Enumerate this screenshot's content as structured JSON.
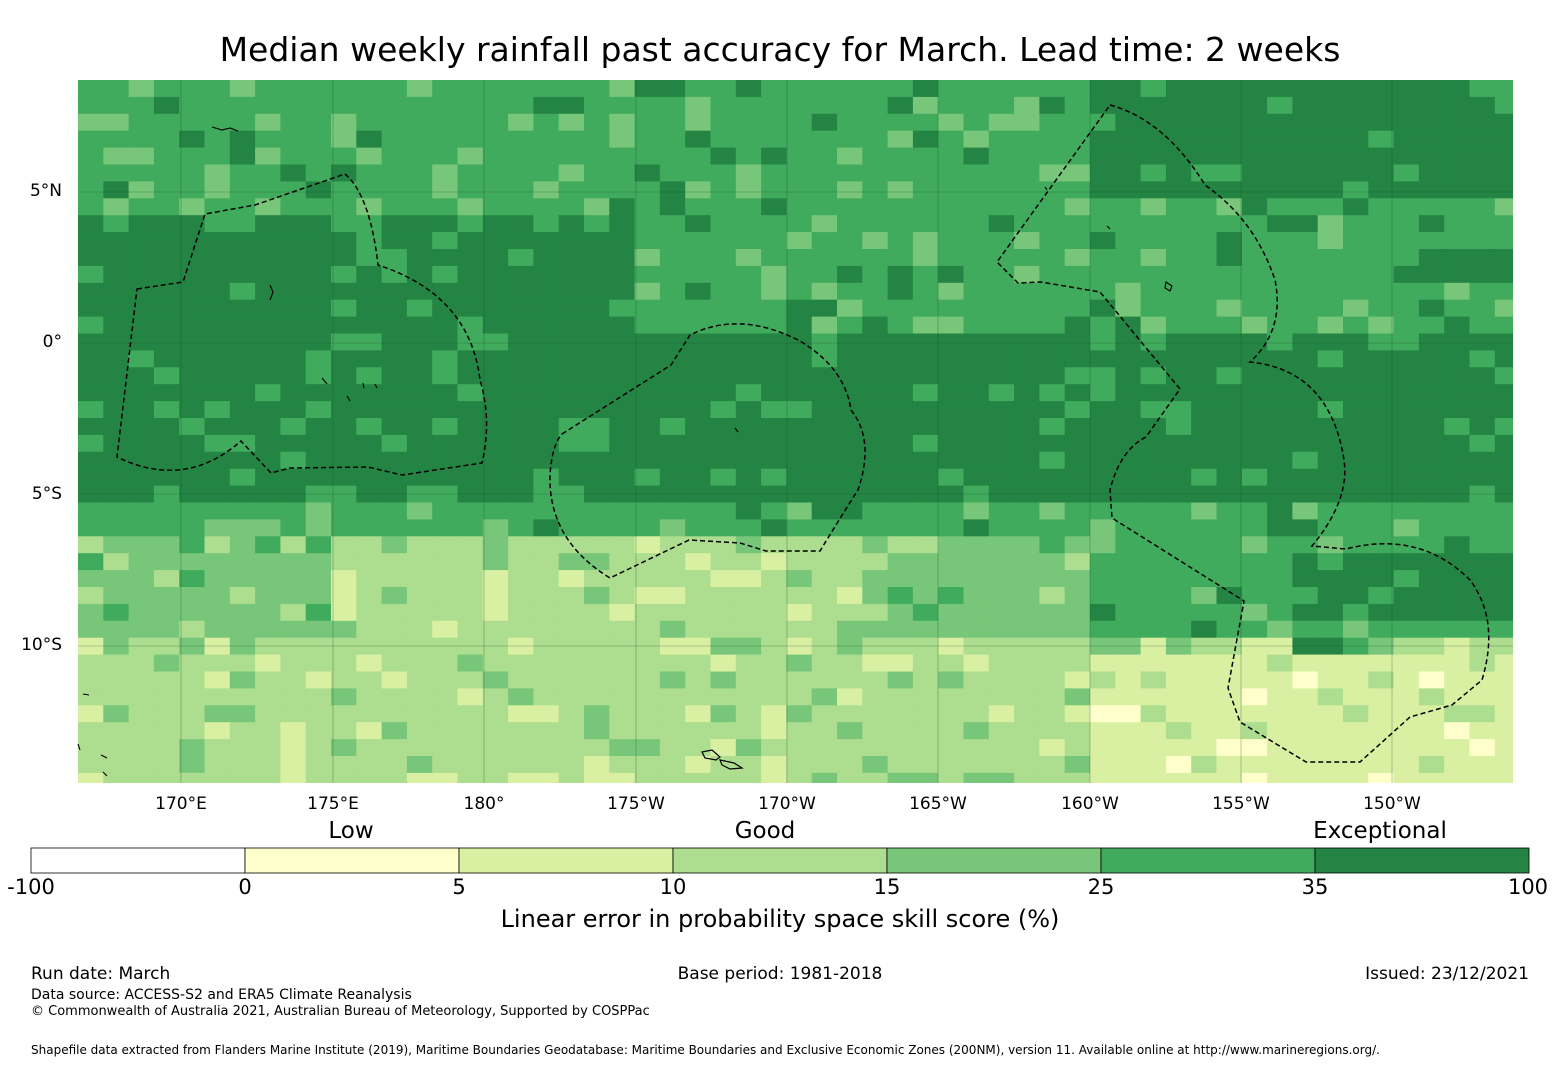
{
  "title": "Median weekly rainfall past accuracy for March. Lead time: 2 weeks",
  "map": {
    "lon_labels": [
      "170°E",
      "175°E",
      "180°",
      "175°W",
      "170°W",
      "165°W",
      "160°W",
      "155°W",
      "150°W"
    ],
    "lat_labels": [
      "5°N",
      "0°",
      "5°S",
      "10°S"
    ]
  },
  "colorbar": {
    "categories": [
      "Low",
      "Good",
      "Exceptional"
    ],
    "ticks": [
      "-100",
      "0",
      "5",
      "10",
      "15",
      "25",
      "35",
      "100"
    ],
    "colors": [
      "#ffffff",
      "#ffffcc",
      "#d9f0a3",
      "#addd8e",
      "#78c679",
      "#41ab5d",
      "#238443"
    ],
    "label": "Linear error in probability space skill score (%)"
  },
  "footer": {
    "run_date": "Run date: March",
    "base_period": "Base period: 1981-2018",
    "issued": "Issued: 23/12/2021",
    "data_source": "Data source: ACCESS-S2 and ERA5 Climate Reanalysis",
    "copyright": "© Commonwealth of Australia 2021, Australian Bureau of Meteorology, Supported by COSPPac",
    "shapefile": "Shapefile data extracted from Flanders Marine Institute (2019), Maritime Boundaries Geodatabase: Maritime Boundaries and Exclusive Economic Zones (200NM), version 11. Available online at http://www.marineregions.org/."
  }
}
